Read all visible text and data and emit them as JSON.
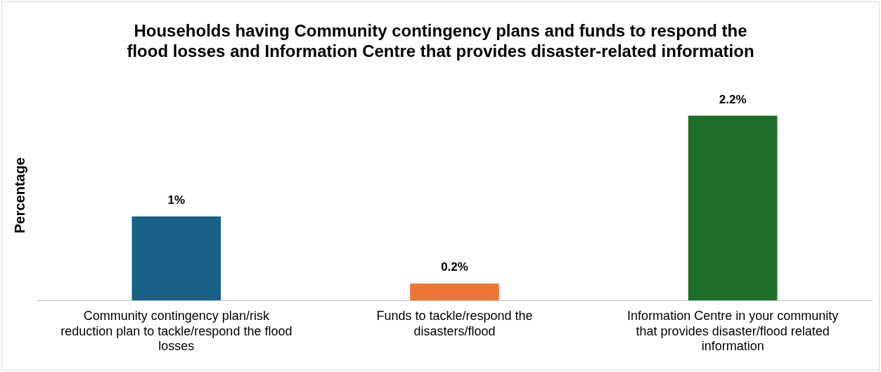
{
  "chart_data": {
    "type": "bar",
    "title": "Households having Community contingency plans and funds to respond the flood losses and Information Centre that provides disaster-related information",
    "ylabel": "Percentage",
    "categories": [
      "Community contingency plan/risk reduction plan to tackle/respond the flood losses",
      "Funds to tackle/respond the disasters/flood",
      "Information Centre in your community that provides disaster/flood related information"
    ],
    "values": [
      1,
      0.2,
      2.2
    ],
    "colors": [
      "#186088",
      "#eb7535",
      "#1d6e27"
    ],
    "value_labels": [
      "1%",
      "0.2%",
      "2.2%"
    ],
    "grid": false,
    "legend": false
  }
}
